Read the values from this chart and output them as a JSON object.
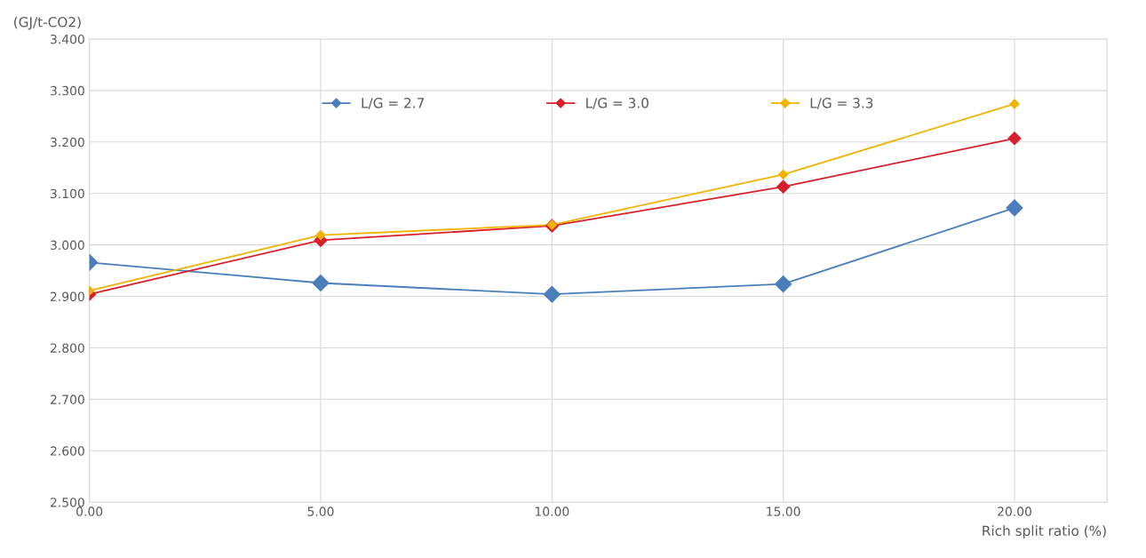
{
  "chart_data": {
    "type": "line",
    "xlabel": "Rich split ratio (%)",
    "ylabel": "(GJ/t-CO2)",
    "x": [
      0,
      5,
      10,
      15,
      20
    ],
    "series": [
      {
        "name": "L/G = 2.7",
        "color": "#4a7ebb",
        "values": [
          2.966,
          2.926,
          2.904,
          2.924,
          3.072
        ]
      },
      {
        "name": "L/G = 3.0",
        "color": "#d9202a",
        "values": [
          2.904,
          3.009,
          3.037,
          3.113,
          3.207
        ]
      },
      {
        "name": "L/G = 3.3",
        "color": "#f0b400",
        "values": [
          2.911,
          3.019,
          3.039,
          3.137,
          3.274
        ]
      }
    ],
    "xlim": [
      0,
      22
    ],
    "xticks": [
      {
        "value": 0,
        "label": "0.00"
      },
      {
        "value": 5,
        "label": "5.00"
      },
      {
        "value": 10,
        "label": "10.00"
      },
      {
        "value": 15,
        "label": "15.00"
      },
      {
        "value": 20,
        "label": "20.00"
      }
    ],
    "ylim": [
      2.5,
      3.4
    ],
    "yticks": [
      {
        "value": 2.5,
        "label": "2.500"
      },
      {
        "value": 2.6,
        "label": "2.600"
      },
      {
        "value": 2.7,
        "label": "2.700"
      },
      {
        "value": 2.8,
        "label": "2.800"
      },
      {
        "value": 2.9,
        "label": "2.900"
      },
      {
        "value": 3.0,
        "label": "3.000"
      },
      {
        "value": 3.1,
        "label": "3.100"
      },
      {
        "value": 3.2,
        "label": "3.200"
      },
      {
        "value": 3.3,
        "label": "3.300"
      },
      {
        "value": 3.4,
        "label": "3.400"
      }
    ],
    "grid": true,
    "legend": "top",
    "marker": "diamond",
    "line_style": "solid"
  }
}
